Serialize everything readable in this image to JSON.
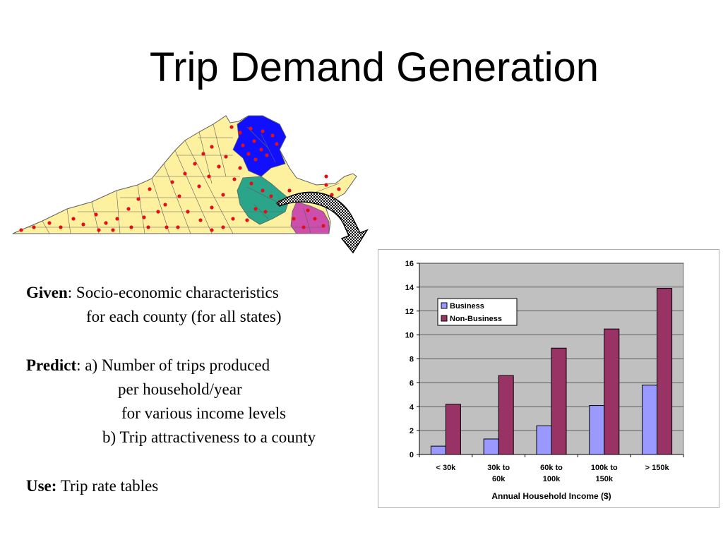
{
  "slide": {
    "title": "Trip Demand Generation"
  },
  "text": {
    "given_label": "Given",
    "given_line1": ": Socio-economic characteristics",
    "given_line2": "for each county (for all states)",
    "predict_label": "Predict",
    "predict_line1": ": a) Number of trips produced",
    "predict_line2": "per household/year",
    "predict_line3": "for various income levels",
    "predict_line4": "b) Trip attractiveness to a county",
    "use_label": "Use:",
    "use_line1": " Trip rate tables"
  },
  "map": {
    "colors": {
      "counties": "#fdf1a0",
      "north_region": "#1010ff",
      "central_region": "#2aa58a",
      "east_region": "#cc4fae",
      "points": "#e0101a",
      "outline": "#606060"
    },
    "arrow_icon": "curved-arrow-icon"
  },
  "chart_data": {
    "type": "bar",
    "categories": [
      "< 30k",
      "30k to 60k",
      "60k to 100k",
      "100k to 150k",
      "> 150k"
    ],
    "category_lines": [
      [
        "< 30k"
      ],
      [
        "30k to",
        "60k"
      ],
      [
        "60k to",
        "100k"
      ],
      [
        "100k to",
        "150k"
      ],
      [
        "> 150k"
      ]
    ],
    "series": [
      {
        "name": "Business",
        "values": [
          0.7,
          1.3,
          2.4,
          4.1,
          5.8
        ],
        "color": "#9999ff"
      },
      {
        "name": "Non-Business",
        "values": [
          4.2,
          6.6,
          8.9,
          10.5,
          13.9
        ],
        "color": "#993366"
      }
    ],
    "title": "",
    "xlabel": "Annual Household Income ($)",
    "ylabel": "",
    "ylim": [
      0,
      16
    ],
    "yticks": [
      "0",
      "2",
      "4",
      "6",
      "8",
      "10",
      "12",
      "14",
      "16"
    ],
    "grid": true,
    "plot_background": "#c0c0c0",
    "legend_position": "top-left"
  }
}
